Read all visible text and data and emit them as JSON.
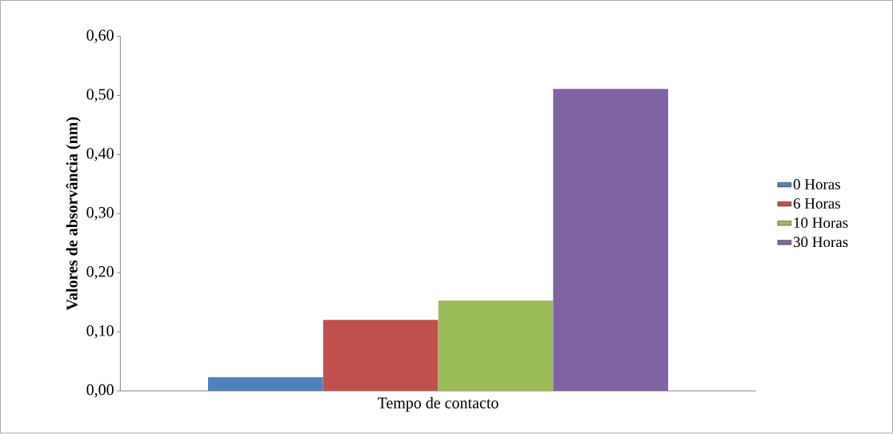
{
  "chart_data": {
    "type": "bar",
    "ylabel": "Valores de absorvância  (nm)",
    "categories": [
      "Tempo de contacto"
    ],
    "series": [
      {
        "name": "0 Horas",
        "color": "#4f81bd",
        "values": [
          0.023
        ]
      },
      {
        "name": "6 Horas",
        "color": "#c0504d",
        "values": [
          0.12
        ]
      },
      {
        "name": "10 Horas",
        "color": "#9bbb59",
        "values": [
          0.153
        ]
      },
      {
        "name": "30 Horas",
        "color": "#8064a2",
        "values": [
          0.511
        ]
      }
    ],
    "ylim": [
      0,
      0.6
    ],
    "yticks": [
      {
        "value": 0,
        "label": "0,00"
      },
      {
        "value": 0.1,
        "label": "0,10"
      },
      {
        "value": 0.2,
        "label": "0,20"
      },
      {
        "value": 0.3,
        "label": "0,30"
      },
      {
        "value": 0.4,
        "label": "0,40"
      },
      {
        "value": 0.5,
        "label": "0,50"
      },
      {
        "value": 0.6,
        "label": "0,60"
      }
    ],
    "legend": "right"
  }
}
